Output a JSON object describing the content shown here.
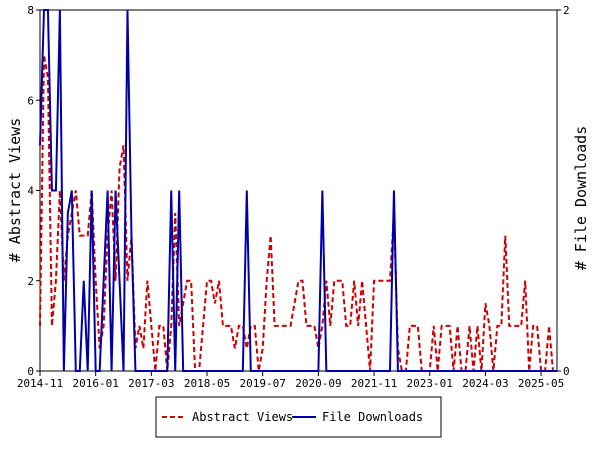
{
  "chart_data": {
    "type": "line",
    "x": [
      "2014-11",
      "2014-12",
      "2015-01",
      "2015-02",
      "2015-03",
      "2015-04",
      "2015-05",
      "2015-06",
      "2015-07",
      "2015-08",
      "2015-09",
      "2015-10",
      "2015-11",
      "2015-12",
      "2016-01",
      "2016-02",
      "2016-03",
      "2016-04",
      "2016-05",
      "2016-06",
      "2016-07",
      "2016-08",
      "2016-09",
      "2016-10",
      "2016-11",
      "2016-12",
      "2017-01",
      "2017-02",
      "2017-03",
      "2017-04",
      "2017-05",
      "2017-06",
      "2017-07",
      "2017-08",
      "2017-09",
      "2017-10",
      "2017-11",
      "2017-12",
      "2018-01",
      "2018-02",
      "2018-03",
      "2018-04",
      "2018-05",
      "2018-06",
      "2018-07",
      "2018-08",
      "2018-09",
      "2018-10",
      "2018-11",
      "2018-12",
      "2019-01",
      "2019-02",
      "2019-03",
      "2019-04",
      "2019-05",
      "2019-06",
      "2019-07",
      "2019-08",
      "2019-09",
      "2019-10",
      "2019-11",
      "2019-12",
      "2020-01",
      "2020-02",
      "2020-03",
      "2020-04",
      "2020-05",
      "2020-06",
      "2020-07",
      "2020-08",
      "2020-09",
      "2020-10",
      "2020-11",
      "2020-12",
      "2021-01",
      "2021-02",
      "2021-03",
      "2021-04",
      "2021-05",
      "2021-06",
      "2021-07",
      "2021-08",
      "2021-09",
      "2021-10",
      "2021-11",
      "2021-12",
      "2022-01",
      "2022-02",
      "2022-03",
      "2022-04",
      "2022-05",
      "2022-06",
      "2022-07",
      "2022-08",
      "2022-09",
      "2022-10",
      "2022-11",
      "2022-12",
      "2023-01",
      "2023-02",
      "2023-03",
      "2023-04",
      "2023-05",
      "2023-06",
      "2023-07",
      "2023-08",
      "2023-09",
      "2023-10",
      "2023-11",
      "2023-12",
      "2024-01",
      "2024-02",
      "2024-03",
      "2024-04",
      "2024-05",
      "2024-06",
      "2024-07",
      "2024-08",
      "2024-09",
      "2024-10",
      "2024-11",
      "2024-12",
      "2025-01",
      "2025-02",
      "2025-03",
      "2025-04",
      "2025-05",
      "2025-06",
      "2025-07",
      "2025-08",
      "2025-09"
    ],
    "series": [
      {
        "name": "Abstract Views",
        "color": "#cc0000",
        "dash": true,
        "axis": "y",
        "values": [
          1,
          7,
          6.5,
          1,
          2,
          4,
          2,
          3,
          3.5,
          4,
          3,
          3,
          3,
          4,
          2,
          0.5,
          1,
          3,
          4,
          2,
          4.5,
          5,
          2,
          3,
          0.5,
          1,
          0.5,
          2,
          1,
          0,
          1,
          1,
          0,
          1,
          3.5,
          1,
          1.5,
          2,
          2,
          0,
          0,
          1,
          2,
          2,
          1.5,
          2,
          1,
          1,
          1,
          0.5,
          1,
          1,
          0.5,
          1,
          1,
          0,
          0.5,
          2,
          3,
          1,
          1,
          1,
          1,
          1,
          1.5,
          2,
          2,
          1,
          1,
          1,
          0.5,
          1,
          2,
          1,
          2,
          2,
          2,
          1,
          1,
          2,
          1,
          2,
          1,
          0,
          2,
          2,
          2,
          2,
          2,
          3.5,
          0.5,
          0,
          0,
          1,
          1,
          1,
          0,
          0,
          0,
          1,
          0,
          1,
          1,
          1,
          0,
          1,
          0,
          0,
          1,
          0,
          1,
          0,
          1.5,
          1,
          0,
          1,
          1,
          3,
          1,
          1,
          1,
          1,
          2,
          0,
          1,
          1,
          0,
          0,
          1,
          0,
          0
        ]
      },
      {
        "name": "File Downloads",
        "color": "#0000aa",
        "dash": false,
        "axis": "y2",
        "values": [
          1.25,
          2,
          2,
          1,
          1,
          2,
          0,
          0.875,
          1,
          0,
          0,
          0.5,
          0,
          1,
          0,
          0,
          0.5,
          1,
          0,
          1,
          0.5,
          0,
          2,
          0.75,
          0,
          0,
          0,
          0,
          0,
          0,
          0,
          0,
          0,
          1,
          0,
          1,
          0,
          0,
          0,
          0,
          0,
          0,
          0,
          0,
          0,
          0,
          0,
          0,
          0,
          0,
          0,
          0,
          1,
          0,
          0,
          0,
          0,
          0,
          0,
          0,
          0,
          0,
          0,
          0,
          0,
          0,
          0,
          0,
          0,
          0,
          0,
          1,
          0,
          0,
          0,
          0,
          0,
          0,
          0,
          0,
          0,
          0,
          0,
          0,
          0,
          0,
          0,
          0,
          0,
          1,
          0,
          0,
          0,
          0,
          0,
          0,
          0,
          0,
          0,
          0,
          0,
          0,
          0,
          0,
          0,
          0,
          0,
          0,
          0,
          0,
          0,
          0,
          0,
          0,
          0,
          0,
          0,
          0,
          0,
          0,
          0,
          0,
          0,
          0,
          0,
          0,
          0,
          0,
          0,
          0,
          0
        ]
      }
    ],
    "xlim": [
      "2014-11",
      "2025-09"
    ],
    "xticks": [
      "2014-11",
      "2016-01",
      "2017-03",
      "2018-05",
      "2019-07",
      "2020-09",
      "2021-11",
      "2023-01",
      "2024-03",
      "2025-05"
    ],
    "ylabel": "# Abstract Views",
    "y2label": "# File Downloads",
    "ylim": [
      0,
      8
    ],
    "yticks": [
      0,
      2,
      4,
      6,
      8
    ],
    "y2lim": [
      0,
      2
    ],
    "y2ticks": [
      0,
      2
    ],
    "legend": "bottom"
  }
}
